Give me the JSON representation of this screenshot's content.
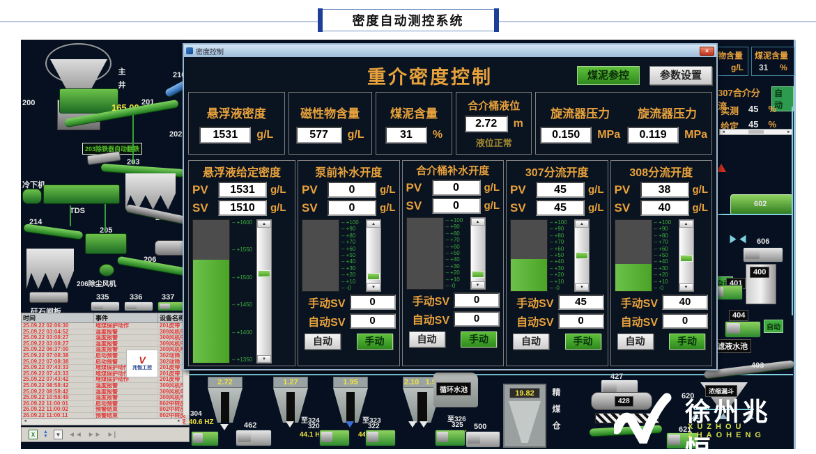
{
  "header": {
    "title": "密度自动测控系统"
  },
  "icons": {
    "close": "×",
    "up": "▲",
    "down": "▼",
    "left": "◄",
    "right": "►",
    "prev": "◄◄",
    "next": "►►",
    "last": "►|",
    "export": "X",
    "sort": "▲▼",
    "save": "▼"
  },
  "dialog": {
    "titlebar": "密度控制",
    "heading": "重介密度控制",
    "btn_slime": "煤泥参控",
    "btn_settings": "参数设置",
    "labels": {
      "pv": "PV",
      "sv": "SV",
      "manual_sv": "手动SV",
      "auto_sv": "自动SV",
      "auto_btn": "自动",
      "manual_btn": "手动"
    },
    "measurements": [
      {
        "label": "悬浮液密度",
        "value": "1531",
        "unit": "g/L"
      },
      {
        "label": "磁性物含量",
        "value": "577",
        "unit": "g/L"
      },
      {
        "label": "煤泥含量",
        "value": "31",
        "unit": "%"
      },
      {
        "label": "合介桶液位",
        "value": "2.72",
        "unit": "m",
        "status": "液位正常"
      },
      {
        "label": "旋流器压力",
        "value": "0.150",
        "unit": "MPa"
      },
      {
        "label": "旋流器压力",
        "value": "0.119",
        "unit": "MPa"
      }
    ],
    "columns": [
      {
        "title": "悬浮液给定密度",
        "pv": "1531",
        "sv": "1510",
        "unit": "g/L",
        "ticks": [
          "+1600",
          "+1550",
          "+1500",
          "+1450",
          "+1400",
          "+1350"
        ],
        "fill_pct": 72,
        "thumb_pct": 36
      },
      {
        "title": "泵前补水开度",
        "pv": "0",
        "sv": "0",
        "unit": "g/L",
        "ticks": [
          "+100",
          "+90",
          "+80",
          "+70",
          "+60",
          "+50",
          "+40",
          "+30",
          "+20",
          "+10",
          "-0"
        ],
        "fill_pct": 0,
        "thumb_pct": 88,
        "manual_sv": "0",
        "auto_sv": "0"
      },
      {
        "title": "合介桶补水开度",
        "pv": "0",
        "sv": "0",
        "unit": "g/L",
        "ticks": [
          "+100",
          "+90",
          "+80",
          "+70",
          "+60",
          "+50",
          "+40",
          "+30",
          "+20",
          "+10",
          "-0"
        ],
        "fill_pct": 0,
        "thumb_pct": 88,
        "manual_sv": "0",
        "auto_sv": "0"
      },
      {
        "title": "307分流开度",
        "pv": "45",
        "sv": "45",
        "unit": "g/L",
        "ticks": [
          "+100",
          "+90",
          "+80",
          "+70",
          "+60",
          "+50",
          "+40",
          "+30",
          "+20",
          "+10",
          "-0"
        ],
        "fill_pct": 45,
        "thumb_pct": 50,
        "manual_sv": "45",
        "auto_sv": "0"
      },
      {
        "title": "308分流开度",
        "pv": "38",
        "sv": "40",
        "unit": "g/L",
        "ticks": [
          "+100",
          "+90",
          "+80",
          "+70",
          "+60",
          "+50",
          "+40",
          "+30",
          "+20",
          "+10",
          "-0"
        ],
        "fill_pct": 38,
        "thumb_pct": 55,
        "manual_sv": "40",
        "auto_sv": "0"
      }
    ]
  },
  "left_diagram": {
    "shaft": "主井",
    "eq200": "200",
    "belt_value": "165.00",
    "eq201": "201",
    "eq210": "210",
    "eq202": "202",
    "notice": "203除铁器自动翻铁",
    "eq203": "203",
    "cold_feeder": "冷下机",
    "tds": "TDS",
    "eq214": "214",
    "eq205": "205",
    "eq209": "209",
    "eq206": "206",
    "fan_label": "206除尘风机",
    "eq335": "335",
    "eq336": "336",
    "eq337": "337",
    "gangue": "矸石闸板"
  },
  "events": {
    "headers": [
      "时间",
      "事件",
      "设备名称"
    ],
    "rows": [
      [
        "25.09.22 02:06:30",
        "堆煤保护动作",
        "201皮带"
      ],
      [
        "25.09.22 03:04:52",
        "温度报警",
        "309风机中轴"
      ],
      [
        "25.09.22 03:08:27",
        "温度报警",
        "309风机中轴"
      ],
      [
        "25.09.22 03:08:27",
        "温度报警",
        "309风机中轴"
      ],
      [
        "25.09.22 06:37:00",
        "温度报警",
        "309风机电机"
      ],
      [
        "25.09.22 07:08:38",
        "启动预警",
        "302动筛"
      ],
      [
        "25.09.22 07:08:38",
        "启动预警",
        "302动筛"
      ],
      [
        "25.09.22 07:43:33",
        "堆煤保护动作",
        "201皮带"
      ],
      [
        "25.09.22 07:43:33",
        "堆煤保护动作",
        "201皮带"
      ],
      [
        "25.09.22 07:43:42",
        "堆煤保护动作",
        "201皮带"
      ],
      [
        "25.09.22 08:58:42",
        "温度报警",
        "309风机电机"
      ],
      [
        "25.09.22 08:58:42",
        "温度报警",
        "309风机电机"
      ],
      [
        "25.09.22 10:58:49",
        "温度报警",
        "309风机电机"
      ],
      [
        "26.09.22 11:00:01",
        "启动预警",
        "802中转皮带"
      ],
      [
        "26.09.22 11:00:02",
        "预警结束",
        "802中转皮带"
      ],
      [
        "26.09.22 11:00:11",
        "预警结束",
        "802中转皮带"
      ],
      [
        "26.09.22 11:00:11",
        "启动预警",
        "802中转皮带"
      ]
    ],
    "watermark_v": "V",
    "watermark_cn": "兆恒工控"
  },
  "right_panel": {
    "box1_label": "物含量",
    "box1_unit": "g/L",
    "box2_label": "煤泥含量",
    "box2_value": "31",
    "box2_unit": "%",
    "flow_title": "307合介分流",
    "flow_mode": "自动",
    "measured_label": "实测",
    "measured_value": "45",
    "measured_unit": "%",
    "set_label": "给定",
    "set_value": "45",
    "set_unit": "%",
    "eq602": "602",
    "eq606": "606",
    "eq400": "400",
    "eq401": "401",
    "eq404": "404",
    "auto1": "自动",
    "auto2": "自动",
    "pool": "滤液水池",
    "eq403": "403"
  },
  "bottom": {
    "tank1": "2.72",
    "tank2": "1.27",
    "tank3": "1.95",
    "tank4a": "2.10",
    "tank4b": "1.57",
    "p304": "304",
    "p304hz": "40.6 HZ",
    "p462": "462",
    "to324": "至324",
    "p320": "320",
    "p320hz": "44.1 HZ",
    "to323": "至323",
    "p322": "322",
    "p322hz": "44.2 HZ",
    "to326": "至326",
    "p325": "325",
    "p325hz": "37.2 HZ",
    "p500": "500",
    "pool1": "循环水池",
    "silo_value": "19.82",
    "silo_label": "精煤仓",
    "p427": "427",
    "p428": "428",
    "p620": "620",
    "funnel": "浓缩漏斗",
    "p621": "621",
    "p403": "403"
  },
  "logo": {
    "cn": "徐州兆恒",
    "en": "XUZHOU ZHAOHENG"
  }
}
